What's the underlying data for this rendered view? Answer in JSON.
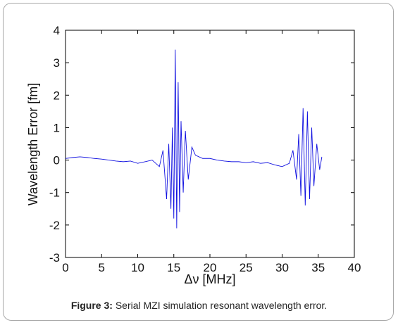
{
  "chart_data": {
    "type": "line",
    "title": "",
    "xlabel": "Δν [MHz]",
    "ylabel": "Wavelength Error [fm]",
    "xlim": [
      0,
      40
    ],
    "ylim": [
      -3,
      4
    ],
    "xticks": [
      0,
      5,
      10,
      15,
      20,
      25,
      30,
      35,
      40
    ],
    "yticks": [
      -3,
      -2,
      -1,
      0,
      1,
      2,
      3,
      4
    ],
    "grid": false,
    "line_color": "#1010e0",
    "series": [
      {
        "x": [
          0,
          1,
          2,
          3,
          4,
          5,
          6,
          7,
          8,
          9,
          10,
          11,
          12,
          13,
          13.5,
          14,
          14.3,
          14.6,
          14.8,
          15.0,
          15.2,
          15.4,
          15.6,
          15.8,
          16.0,
          16.3,
          16.6,
          17.0,
          17.5,
          18,
          19,
          20,
          21,
          22,
          23,
          24,
          25,
          26,
          27,
          28,
          29,
          30,
          31,
          31.5,
          32,
          32.3,
          32.6,
          32.9,
          33.2,
          33.5,
          33.8,
          34.1,
          34.4,
          34.8,
          35.2,
          35.5
        ],
        "y": [
          0.05,
          0.08,
          0.1,
          0.08,
          0.05,
          0.03,
          0.0,
          -0.03,
          -0.05,
          -0.03,
          -0.1,
          -0.05,
          0.0,
          -0.2,
          0.3,
          -1.2,
          0.5,
          -1.5,
          1.0,
          -1.8,
          3.4,
          -2.1,
          2.4,
          -1.6,
          1.2,
          -1.0,
          0.9,
          -0.6,
          0.4,
          0.15,
          0.05,
          0.05,
          0.0,
          -0.03,
          -0.05,
          -0.05,
          -0.08,
          -0.05,
          -0.1,
          -0.08,
          -0.15,
          -0.2,
          -0.1,
          0.3,
          -0.6,
          0.8,
          -1.1,
          1.6,
          -1.4,
          1.5,
          -1.2,
          1.0,
          -0.8,
          0.5,
          -0.3,
          0.1
        ]
      }
    ]
  },
  "caption": {
    "label": "Figure 3:",
    "text": " Serial MZI simulation resonant wavelength error."
  }
}
